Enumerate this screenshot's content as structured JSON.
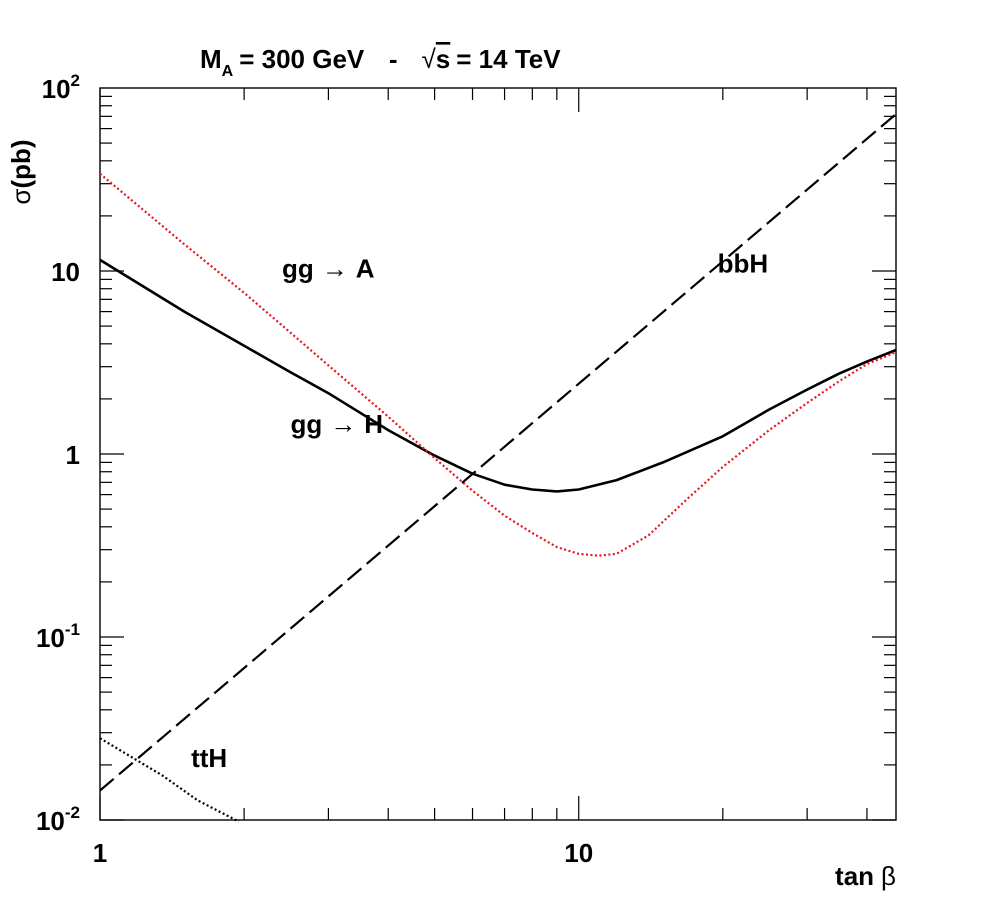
{
  "chart_data": {
    "type": "line",
    "title_parts": {
      "lhs": "M",
      "lhs_sub": "A",
      "mass": "= 300 GeV",
      "sep": "-",
      "sqrt_sym": "√",
      "energy_var": "s",
      "energy": "= 14 TeV"
    },
    "xlabel": {
      "var": "tan",
      "greek": "β"
    },
    "ylabel": {
      "sym": "σ",
      "unit": "(pb)"
    },
    "x_scale": "log",
    "y_scale": "log",
    "xlim": [
      1,
      46
    ],
    "ylim": [
      0.01,
      100
    ],
    "x_ticks": [
      {
        "value": 1,
        "label": "1"
      },
      {
        "value": 10,
        "label": "10"
      }
    ],
    "y_ticks": [
      {
        "value": 0.01,
        "base": "10",
        "exp": "-2"
      },
      {
        "value": 0.1,
        "base": "10",
        "exp": "-1"
      },
      {
        "value": 1,
        "base": "1",
        "exp": ""
      },
      {
        "value": 10,
        "base": "10",
        "exp": ""
      },
      {
        "value": 100,
        "base": "10",
        "exp": "2"
      }
    ],
    "series": [
      {
        "name": "gg → H",
        "label_proc": "gg",
        "label_arrow": "→",
        "label_final": "H",
        "color": "#000000",
        "style": "solid",
        "label_at": [
          2.5,
          1.3
        ],
        "points": [
          [
            1,
            11.5
          ],
          [
            1.5,
            6.0
          ],
          [
            2,
            3.9
          ],
          [
            2.5,
            2.8
          ],
          [
            3,
            2.15
          ],
          [
            4,
            1.35
          ],
          [
            5,
            0.98
          ],
          [
            6,
            0.78
          ],
          [
            7,
            0.68
          ],
          [
            8,
            0.64
          ],
          [
            9,
            0.625
          ],
          [
            10,
            0.64
          ],
          [
            12,
            0.72
          ],
          [
            15,
            0.9
          ],
          [
            20,
            1.25
          ],
          [
            25,
            1.75
          ],
          [
            30,
            2.25
          ],
          [
            35,
            2.75
          ],
          [
            40,
            3.2
          ],
          [
            46,
            3.7
          ]
        ]
      },
      {
        "name": "gg → A",
        "label_proc": "gg",
        "label_arrow": "→",
        "label_final": "A",
        "color": "#e8141c",
        "style": "dotted",
        "label_at": [
          2.4,
          9.2
        ],
        "points": [
          [
            1,
            34
          ],
          [
            1.5,
            14
          ],
          [
            2,
            7.6
          ],
          [
            2.5,
            4.6
          ],
          [
            3,
            3.05
          ],
          [
            4,
            1.6
          ],
          [
            5,
            0.95
          ],
          [
            6,
            0.63
          ],
          [
            7,
            0.46
          ],
          [
            8,
            0.37
          ],
          [
            9,
            0.31
          ],
          [
            10,
            0.285
          ],
          [
            11,
            0.278
          ],
          [
            12,
            0.285
          ],
          [
            14,
            0.36
          ],
          [
            17,
            0.58
          ],
          [
            20,
            0.85
          ],
          [
            25,
            1.35
          ],
          [
            30,
            1.9
          ],
          [
            35,
            2.5
          ],
          [
            40,
            3.1
          ],
          [
            46,
            3.6
          ]
        ]
      },
      {
        "name": "bbH",
        "color": "#000000",
        "style": "dashed",
        "label_at": [
          19.5,
          9.8
        ],
        "points": [
          [
            1,
            0.0145
          ],
          [
            46,
            72
          ]
        ]
      },
      {
        "name": "ttH",
        "color": "#000000",
        "style": "dotted",
        "label_at": [
          1.55,
          0.0195
        ],
        "points": [
          [
            1,
            0.028
          ],
          [
            1.35,
            0.0175
          ],
          [
            1.6,
            0.0128
          ],
          [
            1.95,
            0.0098
          ]
        ]
      }
    ]
  }
}
